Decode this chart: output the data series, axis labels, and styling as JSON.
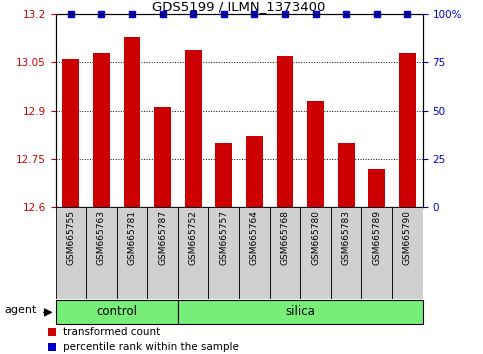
{
  "title": "GDS5199 / ILMN_1373400",
  "samples": [
    "GSM665755",
    "GSM665763",
    "GSM665781",
    "GSM665787",
    "GSM665752",
    "GSM665757",
    "GSM665764",
    "GSM665768",
    "GSM665780",
    "GSM665783",
    "GSM665789",
    "GSM665790"
  ],
  "values": [
    13.06,
    13.08,
    13.13,
    12.91,
    13.09,
    12.8,
    12.82,
    13.07,
    12.93,
    12.8,
    12.72,
    13.08
  ],
  "bar_color": "#cc0000",
  "dot_color": "#0000cc",
  "ymin": 12.6,
  "ymax": 13.2,
  "yticks": [
    12.6,
    12.75,
    12.9,
    13.05,
    13.2
  ],
  "ytick_labels": [
    "12.6",
    "12.75",
    "12.9",
    "13.05",
    "13.2"
  ],
  "right_yticks": [
    0,
    25,
    50,
    75,
    100
  ],
  "right_ytick_labels": [
    "0",
    "25",
    "50",
    "75",
    "100%"
  ],
  "groups": [
    {
      "label": "control",
      "start": 0,
      "end": 4
    },
    {
      "label": "silica",
      "start": 4,
      "end": 12
    }
  ],
  "agent_label": "agent",
  "legend_items": [
    {
      "color": "#cc0000",
      "label": "transformed count"
    },
    {
      "color": "#0000cc",
      "label": "percentile rank within the sample"
    }
  ],
  "group_color": "#77ee77",
  "bar_width": 0.55,
  "xtick_bg": "#d0d0d0"
}
